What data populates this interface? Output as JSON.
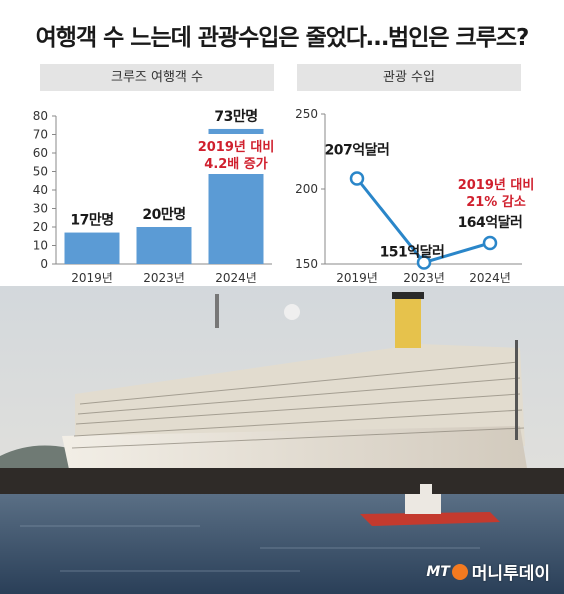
{
  "headline": "여행객 수 느는데 관광수입은 줄었다…범인은 크루즈?",
  "chart_data": [
    {
      "type": "bar",
      "title": "크루즈 여행객 수",
      "categories": [
        "2019년",
        "2023년",
        "2024년"
      ],
      "values": [
        17,
        20,
        73
      ],
      "value_labels": [
        "17만명",
        "20만명",
        "73만명"
      ],
      "yticks": [
        0,
        10,
        20,
        30,
        40,
        50,
        60,
        70,
        80
      ],
      "ylim": [
        0,
        80
      ],
      "annotation": [
        "2019년 대비",
        "4.2배 증가"
      ],
      "bar_color": "#5b9bd5"
    },
    {
      "type": "line",
      "title": "관광 수입",
      "categories": [
        "2019년",
        "2023년",
        "2024년"
      ],
      "values": [
        207,
        151,
        164
      ],
      "value_labels": [
        "207억달러",
        "151억달러",
        "164억달러"
      ],
      "yticks": [
        150,
        200,
        250
      ],
      "ylim": [
        150,
        250
      ],
      "annotation": [
        "2019년 대비",
        "21% 감소"
      ],
      "line_color": "#2a86c9"
    }
  ],
  "logo": {
    "mt": "MT",
    "name": "머니투데이"
  }
}
